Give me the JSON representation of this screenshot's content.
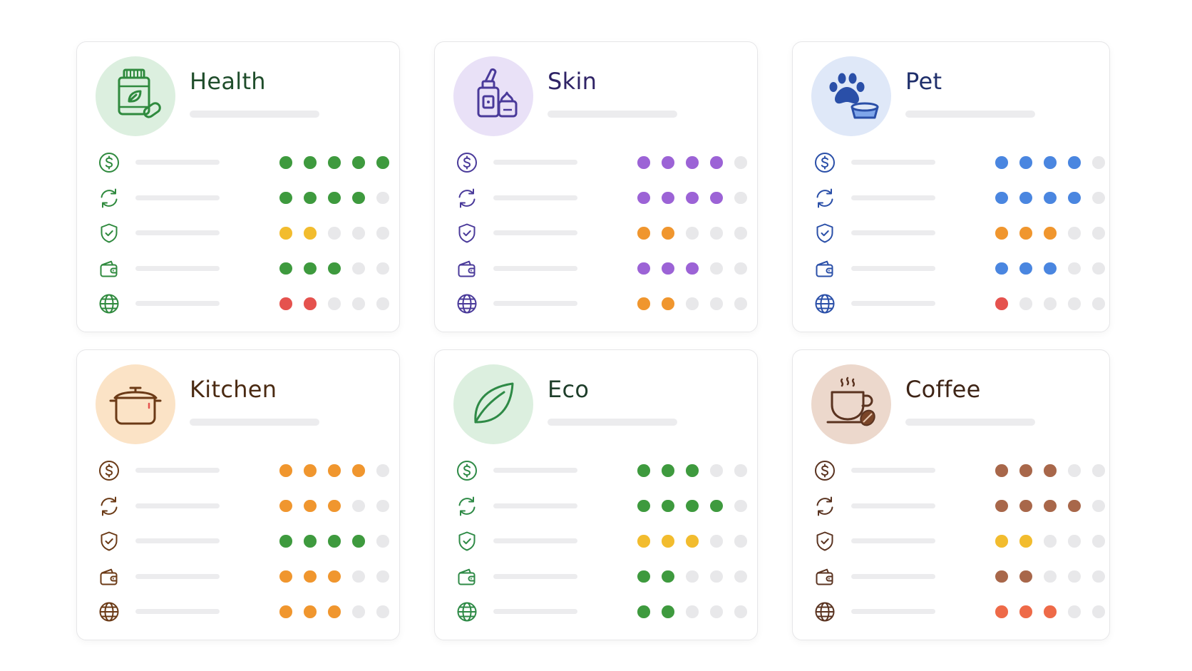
{
  "colors": {
    "empty_dot": "#e8e8ea"
  },
  "cards": [
    {
      "title": "Health",
      "icon": "supplement-bottle-icon",
      "title_color": "#1f4d2b",
      "icon_color": "#2f8a3e",
      "avatar_bg": "#dcefdf",
      "rows": [
        {
          "icon": "dollar-icon",
          "rating": 5,
          "color": "#3e9a3e"
        },
        {
          "icon": "refresh-icon",
          "rating": 4,
          "color": "#3e9a3e"
        },
        {
          "icon": "shield-icon",
          "rating": 2,
          "color": "#f2bc2e"
        },
        {
          "icon": "wallet-icon",
          "rating": 3,
          "color": "#3e9a3e"
        },
        {
          "icon": "globe-icon",
          "rating": 2,
          "color": "#e5524e"
        }
      ]
    },
    {
      "title": "Skin",
      "icon": "serum-cream-icon",
      "title_color": "#2f2366",
      "icon_color": "#4a3a9a",
      "avatar_bg": "#e9e1f7",
      "rows": [
        {
          "icon": "dollar-icon",
          "rating": 4,
          "color": "#9c63d6"
        },
        {
          "icon": "refresh-icon",
          "rating": 4,
          "color": "#9c63d6"
        },
        {
          "icon": "shield-icon",
          "rating": 2,
          "color": "#f0962e"
        },
        {
          "icon": "wallet-icon",
          "rating": 3,
          "color": "#9c63d6"
        },
        {
          "icon": "globe-icon",
          "rating": 2,
          "color": "#f0962e"
        }
      ]
    },
    {
      "title": "Pet",
      "icon": "paw-bowl-icon",
      "title_color": "#1f2f6b",
      "icon_color": "#2a4fa8",
      "avatar_bg": "#dfe8f8",
      "rows": [
        {
          "icon": "dollar-icon",
          "rating": 4,
          "color": "#4a86e0"
        },
        {
          "icon": "refresh-icon",
          "rating": 4,
          "color": "#4a86e0"
        },
        {
          "icon": "shield-icon",
          "rating": 3,
          "color": "#f0962e"
        },
        {
          "icon": "wallet-icon",
          "rating": 3,
          "color": "#4a86e0"
        },
        {
          "icon": "globe-icon",
          "rating": 1,
          "color": "#e5524e"
        }
      ]
    },
    {
      "title": "Kitchen",
      "icon": "cooking-pot-icon",
      "title_color": "#4a2a12",
      "icon_color": "#6b3a16",
      "avatar_bg": "#fbe3c6",
      "rows": [
        {
          "icon": "dollar-icon",
          "rating": 4,
          "color": "#f0962e"
        },
        {
          "icon": "refresh-icon",
          "rating": 3,
          "color": "#f0962e"
        },
        {
          "icon": "shield-icon",
          "rating": 4,
          "color": "#3e9a3e"
        },
        {
          "icon": "wallet-icon",
          "rating": 3,
          "color": "#f0962e"
        },
        {
          "icon": "globe-icon",
          "rating": 3,
          "color": "#f0962e"
        }
      ]
    },
    {
      "title": "Eco",
      "icon": "leaf-icon",
      "title_color": "#1e3e2a",
      "icon_color": "#2e8a46",
      "avatar_bg": "#dcefdf",
      "rows": [
        {
          "icon": "dollar-icon",
          "rating": 3,
          "color": "#3e9a3e"
        },
        {
          "icon": "refresh-icon",
          "rating": 4,
          "color": "#3e9a3e"
        },
        {
          "icon": "shield-icon",
          "rating": 3,
          "color": "#f2bc2e"
        },
        {
          "icon": "wallet-icon",
          "rating": 2,
          "color": "#3e9a3e"
        },
        {
          "icon": "globe-icon",
          "rating": 2,
          "color": "#3e9a3e"
        }
      ]
    },
    {
      "title": "Coffee",
      "icon": "coffee-cup-icon",
      "title_color": "#3e2416",
      "icon_color": "#5a3320",
      "avatar_bg": "#ecd8cc",
      "rows": [
        {
          "icon": "dollar-icon",
          "rating": 3,
          "color": "#a8674a"
        },
        {
          "icon": "refresh-icon",
          "rating": 4,
          "color": "#a8674a"
        },
        {
          "icon": "shield-icon",
          "rating": 2,
          "color": "#f2bc2e"
        },
        {
          "icon": "wallet-icon",
          "rating": 2,
          "color": "#a8674a"
        },
        {
          "icon": "globe-icon",
          "rating": 3,
          "color": "#ee6a48"
        }
      ]
    }
  ]
}
